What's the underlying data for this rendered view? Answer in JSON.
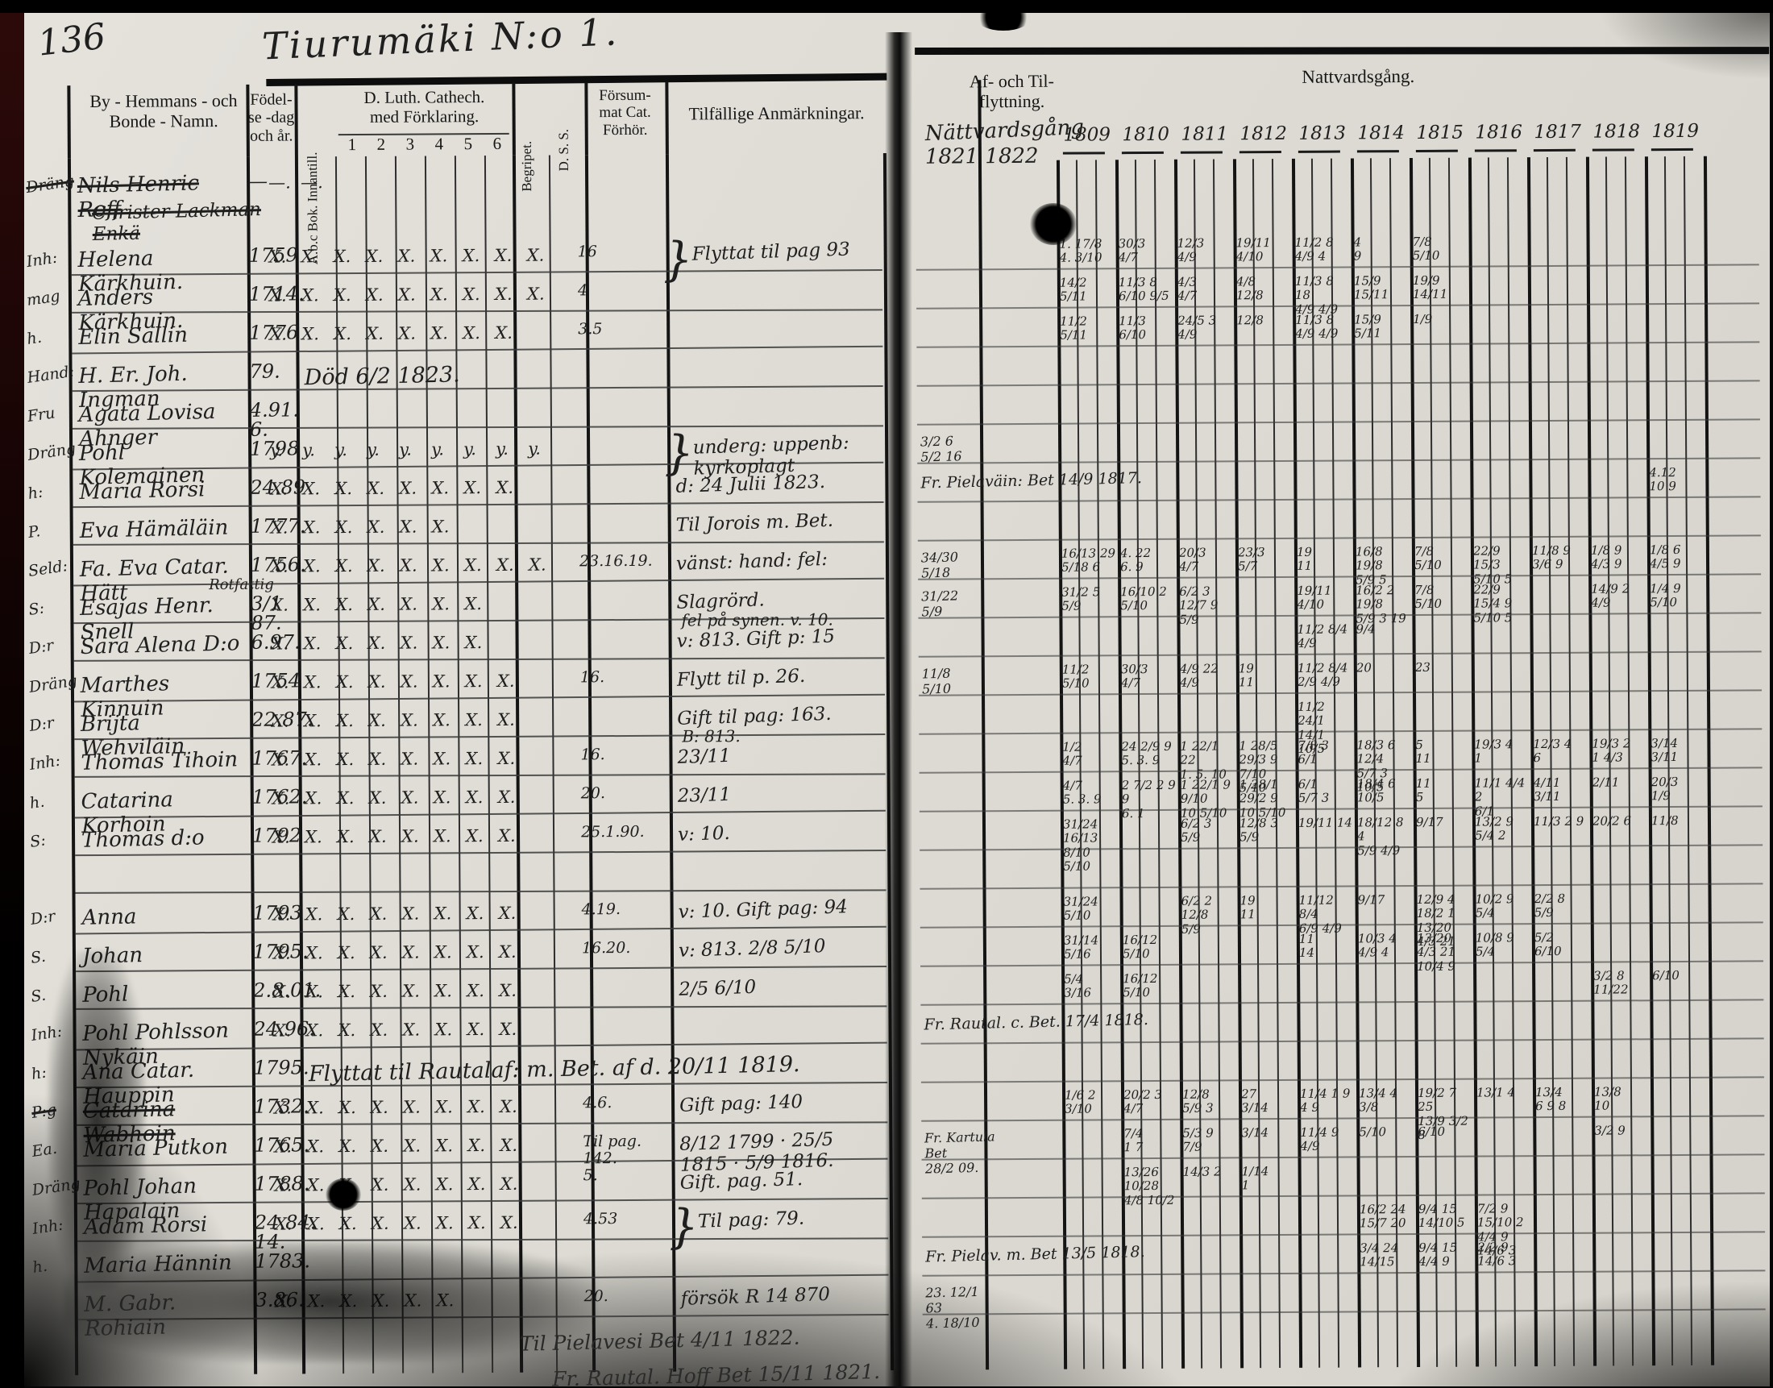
{
  "document": {
    "page_number": "136",
    "title": "Tiurumäki N:o 1.",
    "left_page": {
      "col_name": "By - Hemmans - och\nBonde - Namn.",
      "col_birth": "Födel-\nse -dag\noch år.",
      "col_abc": "A.b.c Bok. Innantill.",
      "col_cat": "D. Luth. Cathech.\nmed Förklaring.",
      "cat_subcols": [
        "1",
        "2",
        "3",
        "4",
        "5",
        "6"
      ],
      "col_begripet": "Begripet.",
      "col_dss": "D. S. S.",
      "col_forsummat": "Försum-\nmat Cat.\nFörhör.",
      "col_anm": "Tilfällige Anmärkningar."
    },
    "right_page": {
      "col_moving": "Af- och Til-\nflyttning.",
      "col_communion": "Nattvardsgång.",
      "hw_title": "Nättvardsgång",
      "hw_years": "1821  1822",
      "years": [
        "1809",
        "1810",
        "1811",
        "1812",
        "1813",
        "1814",
        "1815",
        "1816",
        "1817",
        "1818",
        "1819"
      ]
    },
    "rows": [
      {
        "prefix": "Dräng",
        "name": "Nils Henric Roff",
        "name2": "Christer Lackman Enkä",
        "birth": "—",
        "marks": "—,—",
        "crossed": true
      },
      {
        "prefix": "Inh:",
        "name": "Helena Kärkhuin.",
        "birth": "1759",
        "marks": "X,X,X,X,X,X,X,X,X",
        "fors": "16",
        "remark": "Flyttat til pag 93",
        "brace": true
      },
      {
        "prefix": "mag",
        "name": "Anders Kärkhuin.",
        "birth": "1714.",
        "marks": "X,X,X,X,X,X,X,X,X",
        "fors": "4"
      },
      {
        "prefix": "h.",
        "name": "Elin Sallin",
        "birth": "1776",
        "marks": "X,X,X,X,X,X,X,X",
        "fors": "3.5"
      },
      {
        "prefix": "Hand:",
        "name": "H. Er. Joh. Ingman",
        "birth": "79.",
        "note_span": "Död 6/2 1823."
      },
      {
        "prefix": "Fru",
        "name": "Agata Lovisa Ahnger",
        "birth": "4.91.\n6."
      },
      {
        "prefix": "Dräng",
        "name": "Pohl Kolemainen",
        "birth": "1798",
        "marks": "y,y,y,y,y,y,y,y,y",
        "remark": "underg: uppenb: kyrkoplagt",
        "brace": true
      },
      {
        "prefix": "h:",
        "name": "Maria Rorsi",
        "birth": "24.89",
        "marks": "X,X,X,X,X,X,X,X",
        "remark": "d: 24 Julii 1823."
      },
      {
        "prefix": "P.",
        "name": "Eva Hämäläin",
        "birth": "1777.",
        "marks": "X,X,X,X,X,X",
        "remark": "Til Jorois m. Bet."
      },
      {
        "prefix": "Seld:",
        "name": "Fa. Eva Catar. Hätt",
        "birth": "1756.",
        "marks": "X,X,X,X,X,X,X,X,X",
        "fors": "23.16.19.",
        "remark": "vänst: hand: fel:"
      },
      {
        "prefix": "S:",
        "name": "Esajas Henr. Snell",
        "name_above": "Rotfattig",
        "birth": "3/1 87.",
        "marks": "X,X,X,X,X,X,X",
        "remark": "Slagrörd.",
        "remark2": "fel på synen. v. 10."
      },
      {
        "prefix": "D:r",
        "name": "Sara Alena D:o",
        "birth": "6.97.",
        "marks": "X,X,X,X,X,X,X",
        "remark": "v: 813. Gift p: 15"
      },
      {
        "prefix": "Dräng",
        "name": "Marthes Kinnuin",
        "birth": "1754",
        "marks": "X,X,X,X,X,X,X,X",
        "fors": "16.",
        "remark": "Flytt til p. 26."
      },
      {
        "prefix": "D:r",
        "name": "Brijta Wehviläin",
        "birth": "22.87.",
        "marks": "X,X,X,X,X,X,X,X",
        "remark": "Gift til pag: 163.",
        "remark2": "B: 813."
      },
      {
        "prefix": "Inh:",
        "name": "Thomas Tihoin",
        "birth": "1767.",
        "marks": "X,X,X,X,X,X,X,X",
        "fors": "16.",
        "remark": "23/11"
      },
      {
        "prefix": "h.",
        "name": "Catarina Korhoin",
        "birth": "1762.",
        "marks": "X,X,X,X,X,X,X,X",
        "fors": "20.",
        "remark": "23/11"
      },
      {
        "prefix": "S:",
        "name": "Thomas d:o",
        "birth": "1792",
        "marks": "X,X,X,X,X,X,X,X",
        "fors": "25.1.90.",
        "remark": "v: 10."
      },
      {
        "blank": true
      },
      {
        "prefix": "D:r",
        "name": "Anna",
        "birth": "1793",
        "marks": "X,X,X,X,X,X,X,X",
        "fors": "4.19.",
        "remark": "v: 10.  Gift pag: 94"
      },
      {
        "prefix": "S.",
        "name": "Johan",
        "birth": "1795.",
        "marks": "X,X,X,X,X,X,X,X",
        "fors": "16.20.",
        "remark": "v: 813.  2/8  5/10"
      },
      {
        "prefix": "S.",
        "name": "Pohl",
        "birth": "2.8.01.",
        "marks": "X,X,X,X,X,X,X,X",
        "remark": "2/5  6/10"
      },
      {
        "prefix": "Inh:",
        "name": "Pohl Pohlsson Nykäin",
        "birth": "24.96.",
        "marks": "X,X,X,X,X,X,X,X"
      },
      {
        "prefix": "h:",
        "name": "Ana Catar. Hauppin",
        "birth": "1795.",
        "note_span": "Flyttat til Rautalaf: m. Bet. af d. 20/11 1819."
      },
      {
        "prefix": "P:g",
        "name": "Catarina Wabhoin",
        "birth": "1732.",
        "marks": "X,X,X,X,X,X,X,X",
        "fors": "4.6.",
        "remark": "Gift pag: 140",
        "crossed": true
      },
      {
        "prefix": "Ea.",
        "name": "Maria Putkon",
        "birth": "1765.",
        "marks": "X,X,X,X,X,X,X,X",
        "fors": "Til pag. 142.\n5.",
        "remark": "8/12 1799 · 25/5 1815 · 5/9 1816."
      },
      {
        "prefix": "Dräng",
        "name": "Pohl Johan Hapalain",
        "birth": "1788.",
        "marks": "X,X,X,X,X,X,X,X",
        "remark": "Gift. pag. 51."
      },
      {
        "prefix": "Inh:",
        "name": "Adam Rorsi",
        "birth": "24.84.\n14.",
        "marks": "X,X,X,X,X,X,X,X",
        "fors": "4.53",
        "remark": "Til pag: 79.",
        "brace": true
      },
      {
        "prefix": "h.",
        "name": "Maria Hännin",
        "birth": "1783."
      },
      {
        "prefix": "",
        "name": "M. Gabr. Rohiain",
        "birth": "3.86.",
        "marks": "X,X,X,X,X,X",
        "fors": "20.",
        "remark": "försök R 14 870",
        "smudged": true
      }
    ],
    "bottom_notes": [
      {
        "t": "Til Pielavesi Bet 4/11 1822."
      },
      {
        "t": "Fr. Rautal. Hoff Bet 15/11 1821."
      }
    ],
    "moving_notes": [
      {
        "r": 6,
        "t": "3/2  6\n5/2  16"
      },
      {
        "r": 7,
        "t": "Fr. Pielaväin: Bet 14/9 1817.",
        "wide": true
      },
      {
        "r": 9,
        "t": "34/30\n5/18"
      },
      {
        "r": 10,
        "t": "31/22\n5/9"
      },
      {
        "r": 12,
        "t": "11/8\n5/10"
      },
      {
        "r": 21,
        "t": "Fr. Rautal. c. Bet. 17/4 1818.",
        "wide": true
      },
      {
        "r": 24,
        "t": "Fr. Kartula Bet\n28/2 09."
      },
      {
        "r": 27,
        "t": "Fr. Pielav. m. Bet 13/5 1818.",
        "wide": true
      },
      {
        "r": 28,
        "t": "23. 12/1 63\n4. 18/10"
      }
    ],
    "communion_cells": [
      {
        "r": 1,
        "c": 0,
        "t": "1. 17/8\n4. 3/10"
      },
      {
        "r": 1,
        "c": 1,
        "t": "30/3\n4/7"
      },
      {
        "r": 1,
        "c": 2,
        "t": "12/3\n4/9"
      },
      {
        "r": 1,
        "c": 3,
        "t": "19/11\n4/10"
      },
      {
        "r": 1,
        "c": 4,
        "t": "11/2 8\n4/9 4"
      },
      {
        "r": 1,
        "c": 5,
        "t": "4\n9"
      },
      {
        "r": 1,
        "c": 6,
        "t": "7/8\n5/10"
      },
      {
        "r": 2,
        "c": 0,
        "t": "14/2\n5/11"
      },
      {
        "r": 2,
        "c": 1,
        "t": "11/3 8\n6/10 9/5"
      },
      {
        "r": 2,
        "c": 2,
        "t": "4/3\n4/7"
      },
      {
        "r": 2,
        "c": 3,
        "t": "4/8\n12/8"
      },
      {
        "r": 2,
        "c": 4,
        "t": "11/3 8 18\n4/9 4/9"
      },
      {
        "r": 2,
        "c": 5,
        "t": "15/9\n15/11"
      },
      {
        "r": 2,
        "c": 6,
        "t": "19/9\n14/11"
      },
      {
        "r": 3,
        "c": 0,
        "t": "11/2\n5/11"
      },
      {
        "r": 3,
        "c": 1,
        "t": "11/3\n6/10"
      },
      {
        "r": 3,
        "c": 2,
        "t": "24/5 3\n4/9"
      },
      {
        "r": 3,
        "c": 3,
        "t": "12/8"
      },
      {
        "r": 3,
        "c": 4,
        "t": "11/3 8\n4/9 4/9"
      },
      {
        "r": 3,
        "c": 5,
        "t": "15/9\n5/11"
      },
      {
        "r": 3,
        "c": 6,
        "t": "1/9"
      },
      {
        "r": 7,
        "c": 10,
        "t": "4.12\n10  9"
      },
      {
        "r": 9,
        "c": 0,
        "t": "16/13 29\n5/18 6"
      },
      {
        "r": 9,
        "c": 1,
        "t": "4. 22\n6. 9"
      },
      {
        "r": 9,
        "c": 2,
        "t": "20/3\n4/7"
      },
      {
        "r": 9,
        "c": 3,
        "t": "23/3\n5/7"
      },
      {
        "r": 9,
        "c": 4,
        "t": "19\n11"
      },
      {
        "r": 9,
        "c": 5,
        "t": "16/8 19/8\n5/9 5"
      },
      {
        "r": 9,
        "c": 6,
        "t": "7/8\n5/10"
      },
      {
        "r": 9,
        "c": 7,
        "t": "22/9 15/3\n5/10 5"
      },
      {
        "r": 9,
        "c": 8,
        "t": "11/8 9\n3/6 9"
      },
      {
        "r": 9,
        "c": 9,
        "t": "1/8 9\n4/3 9"
      },
      {
        "r": 9,
        "c": 10,
        "t": "1/8 6\n4/5 9"
      },
      {
        "r": 10,
        "c": 0,
        "t": "31/2 5\n5/9"
      },
      {
        "r": 10,
        "c": 1,
        "t": "16/10 2\n5/10"
      },
      {
        "r": 10,
        "c": 2,
        "t": "6/2 3 12/7 9\n5/9"
      },
      {
        "r": 10,
        "c": 4,
        "t": "19/11\n4/10"
      },
      {
        "r": 10,
        "c": 5,
        "t": "16/2 2 19/8\n5/9 3 19"
      },
      {
        "r": 10,
        "c": 6,
        "t": "7/8\n5/10"
      },
      {
        "r": 10,
        "c": 7,
        "t": "22/9 15/4 9\n5/10 5"
      },
      {
        "r": 10,
        "c": 9,
        "t": "14/9 2\n4/9"
      },
      {
        "r": 10,
        "c": 10,
        "t": "1/4 9\n5/10"
      },
      {
        "r": 11,
        "c": 4,
        "t": "11/2 8/4\n4/9"
      },
      {
        "r": 11,
        "c": 5,
        "t": "9/4"
      },
      {
        "r": 12,
        "c": 0,
        "t": "11/2\n5/10"
      },
      {
        "r": 12,
        "c": 1,
        "t": "30/3\n4/7"
      },
      {
        "r": 12,
        "c": 2,
        "t": "4/9 22\n4/9"
      },
      {
        "r": 12,
        "c": 3,
        "t": "19\n11"
      },
      {
        "r": 12,
        "c": 4,
        "t": "11/2 8/4\n2/9 4/9"
      },
      {
        "r": 12,
        "c": 5,
        "t": "20"
      },
      {
        "r": 12,
        "c": 6,
        "t": "23"
      },
      {
        "r": 13,
        "c": 4,
        "t": "11/2 24/1\n14/1 10/5"
      },
      {
        "r": 14,
        "c": 0,
        "t": "1/2\n4/7"
      },
      {
        "r": 14,
        "c": 1,
        "t": "24 2/9 9\n5. 3. 9"
      },
      {
        "r": 14,
        "c": 2,
        "t": "1 22/1 22\n1. 5. 10"
      },
      {
        "r": 14,
        "c": 3,
        "t": "1 28/5 29/3 9\n7/10 5/10"
      },
      {
        "r": 14,
        "c": 4,
        "t": "7/8 3\n6/1"
      },
      {
        "r": 14,
        "c": 5,
        "t": "18/3 6 12/4\n5/7 3 10/5"
      },
      {
        "r": 14,
        "c": 6,
        "t": "5\n11"
      },
      {
        "r": 14,
        "c": 7,
        "t": "19/3 4\n1"
      },
      {
        "r": 14,
        "c": 8,
        "t": "12/3 4\n6"
      },
      {
        "r": 14,
        "c": 9,
        "t": "19/3 2\n1 4/3"
      },
      {
        "r": 14,
        "c": 10,
        "t": "3/14\n3/11"
      },
      {
        "r": 15,
        "c": 0,
        "t": "4/7\n5. 3. 9"
      },
      {
        "r": 15,
        "c": 1,
        "t": "2 7/2 2 9 9\n6. 1"
      },
      {
        "r": 15,
        "c": 2,
        "t": "1 22/1 9 9/10\n10 5/10"
      },
      {
        "r": 15,
        "c": 3,
        "t": "1 28/1 29/2 9\n10 5/10"
      },
      {
        "r": 15,
        "c": 4,
        "t": "6/1\n5/7 3"
      },
      {
        "r": 15,
        "c": 5,
        "t": "18/4 6\n10/5"
      },
      {
        "r": 15,
        "c": 6,
        "t": "11\n5"
      },
      {
        "r": 15,
        "c": 7,
        "t": "11/1 4/4 2\n6/1"
      },
      {
        "r": 15,
        "c": 8,
        "t": "4/11\n3/11"
      },
      {
        "r": 15,
        "c": 9,
        "t": "2/11"
      },
      {
        "r": 15,
        "c": 10,
        "t": "20/3\n1/9"
      },
      {
        "r": 16,
        "c": 0,
        "t": "31/24 16/13\n8/10 5/10"
      },
      {
        "r": 16,
        "c": 2,
        "t": "6/2 3\n5/9"
      },
      {
        "r": 16,
        "c": 3,
        "t": "12/8 3\n5/9"
      },
      {
        "r": 16,
        "c": 4,
        "t": "19/11 14"
      },
      {
        "r": 16,
        "c": 5,
        "t": "18/12 8 4\n5/9 4/9"
      },
      {
        "r": 16,
        "c": 6,
        "t": "9/17"
      },
      {
        "r": 16,
        "c": 7,
        "t": "13/2 9 5/4 2"
      },
      {
        "r": 16,
        "c": 8,
        "t": "11/3 2 9"
      },
      {
        "r": 16,
        "c": 9,
        "t": "20/2 6"
      },
      {
        "r": 16,
        "c": 10,
        "t": "11/8"
      },
      {
        "r": 18,
        "c": 0,
        "t": "31/24\n5/10"
      },
      {
        "r": 18,
        "c": 2,
        "t": "6/2 2 12/8\n5/9"
      },
      {
        "r": 18,
        "c": 3,
        "t": "19\n11"
      },
      {
        "r": 18,
        "c": 4,
        "t": "11/12 8/4\n6/9 4/9"
      },
      {
        "r": 18,
        "c": 5,
        "t": "9/17"
      },
      {
        "r": 18,
        "c": 6,
        "t": "12/9 4 18/2 1\n13/20 4/3 21"
      },
      {
        "r": 18,
        "c": 7,
        "t": "10/2 9\n5/4"
      },
      {
        "r": 18,
        "c": 8,
        "t": "2/2 8\n5/9"
      },
      {
        "r": 19,
        "c": 0,
        "t": "31/14\n5/16"
      },
      {
        "r": 19,
        "c": 1,
        "t": "16/12\n5/10"
      },
      {
        "r": 19,
        "c": 4,
        "t": "11\n14"
      },
      {
        "r": 19,
        "c": 5,
        "t": "10/3 4\n4/9 4"
      },
      {
        "r": 19,
        "c": 6,
        "t": "13/20 4/3 21\n10/4 9"
      },
      {
        "r": 19,
        "c": 7,
        "t": "10/8 9\n5/4"
      },
      {
        "r": 19,
        "c": 8,
        "t": "5/2\n6/10"
      },
      {
        "r": 20,
        "c": 0,
        "t": "5/4\n3/16"
      },
      {
        "r": 20,
        "c": 1,
        "t": "16/12\n5/10"
      },
      {
        "r": 20,
        "c": 9,
        "t": "3/2 8\n11/22"
      },
      {
        "r": 20,
        "c": 10,
        "t": "6/10"
      },
      {
        "r": 23,
        "c": 0,
        "t": "1/6 2\n3/10"
      },
      {
        "r": 23,
        "c": 1,
        "t": "20/2 3\n4/7"
      },
      {
        "r": 23,
        "c": 2,
        "t": "12/8\n5/9 3"
      },
      {
        "r": 23,
        "c": 3,
        "t": "27\n3/14"
      },
      {
        "r": 23,
        "c": 4,
        "t": "11/4 1 9\n4 9"
      },
      {
        "r": 23,
        "c": 5,
        "t": "13/4 4\n3/8"
      },
      {
        "r": 23,
        "c": 6,
        "t": "19/2 7 25\n13/9 3/2 8"
      },
      {
        "r": 23,
        "c": 7,
        "t": "13/1 4"
      },
      {
        "r": 23,
        "c": 8,
        "t": "13/4\n6 9 8"
      },
      {
        "r": 23,
        "c": 9,
        "t": "13/8\n10"
      },
      {
        "r": 24,
        "c": 1,
        "t": "7/4\n1 7"
      },
      {
        "r": 24,
        "c": 2,
        "t": "5/3 9\n7/9"
      },
      {
        "r": 24,
        "c": 3,
        "t": "3/14"
      },
      {
        "r": 24,
        "c": 4,
        "t": "11/4 9\n4/9"
      },
      {
        "r": 24,
        "c": 5,
        "t": "5/10"
      },
      {
        "r": 24,
        "c": 6,
        "t": "6/10"
      },
      {
        "r": 24,
        "c": 9,
        "t": "3/2 9"
      },
      {
        "r": 25,
        "c": 1,
        "t": "13/26 10/28\n4/8 10/2"
      },
      {
        "r": 25,
        "c": 2,
        "t": "14/3 2"
      },
      {
        "r": 25,
        "c": 3,
        "t": "1/14\n1"
      },
      {
        "r": 26,
        "c": 5,
        "t": "16/2 24\n15/7 20"
      },
      {
        "r": 26,
        "c": 6,
        "t": "9/4 15\n14/10 5"
      },
      {
        "r": 26,
        "c": 7,
        "t": "7/2 9 15/10 2\n4/4 9 14/6 3"
      },
      {
        "r": 27,
        "c": 5,
        "t": "3/4 24\n14/15"
      },
      {
        "r": 27,
        "c": 6,
        "t": "9/4 15\n4/4 9"
      },
      {
        "r": 27,
        "c": 7,
        "t": "2/2 9\n14/6 3"
      }
    ]
  }
}
